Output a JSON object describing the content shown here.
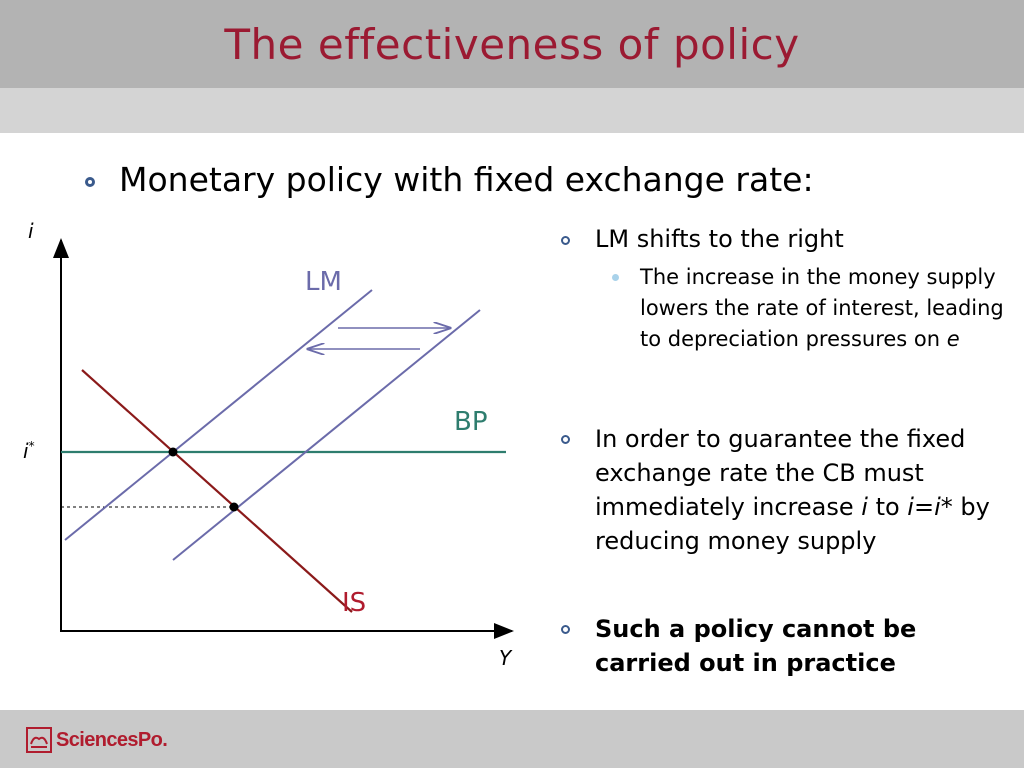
{
  "slide": {
    "title": "The effectiveness of policy",
    "main_bullet": "Monetary policy with fixed exchange rate:",
    "colors": {
      "title": "#9b1a32",
      "header_bg": "#b3b3b3",
      "bullet": "#3a5a8c",
      "IS": "#8b1a1a",
      "LM": "#6b6baa",
      "BP": "#2e7d6e"
    }
  },
  "diagram": {
    "y_axis_label": "i",
    "x_axis_label": "Y",
    "istar_label": "i",
    "istar_sup": "*",
    "curves": {
      "LM": "LM",
      "BP": "BP",
      "IS": "IS"
    }
  },
  "bullets": {
    "b1": "LM shifts to the right",
    "b1_sub_a": "The increase in the money supply lowers the rate of interest, leading to depreciation pressures on ",
    "b1_sub_e": "e",
    "b2_a": "In order to guarantee the fixed exchange rate the CB must immediately increase ",
    "b2_i1": "i",
    "b2_to": " to ",
    "b2_i2": "i",
    "b2_eq": "=",
    "b2_i3": "i",
    "b2_star": "*",
    "b2_b": " by reducing money supply",
    "b3": "Such a policy cannot be carried out in practice"
  },
  "footer": {
    "logo_text": "SciencesPo."
  }
}
